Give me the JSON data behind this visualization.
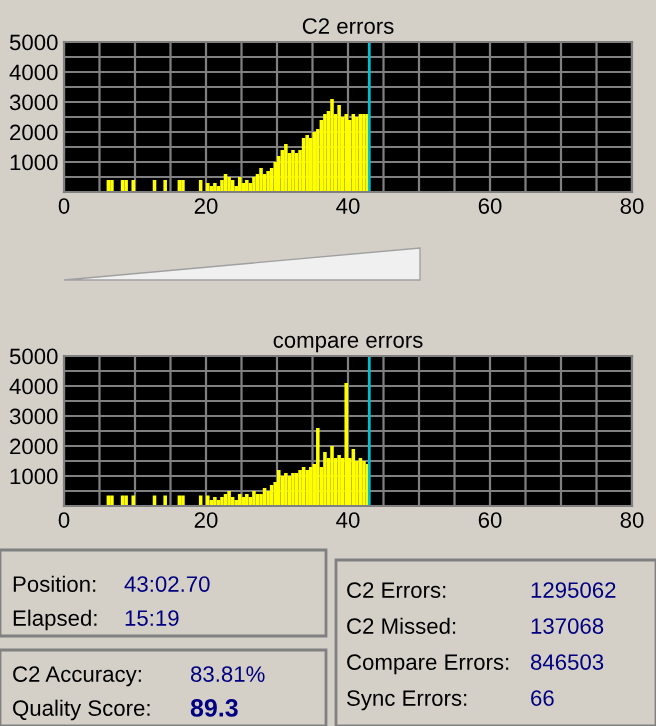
{
  "chart_data": [
    {
      "type": "histogram",
      "title": "C2 errors",
      "bins": [
        5.5,
        6,
        6.5,
        7,
        7.5,
        8,
        8.5,
        9,
        9.5,
        10,
        10.5,
        11,
        11.5,
        12,
        12.5,
        13,
        13.5,
        14,
        14.5,
        15,
        15.5,
        16,
        16.5,
        17,
        17.5,
        18,
        18.5,
        19,
        19.5,
        20,
        20.5,
        21,
        21.5,
        22,
        22.5,
        23,
        23.5,
        24,
        24.5,
        25,
        25.5,
        26,
        26.5,
        27,
        27.5,
        28,
        28.5,
        29,
        29.5,
        30,
        30.5,
        31,
        31.5,
        32,
        32.5,
        33,
        33.5,
        34,
        34.5,
        35,
        35.5,
        36,
        36.5,
        37,
        37.5,
        38,
        38.5,
        39,
        39.5,
        40,
        40.5,
        41,
        41.5,
        42,
        42.5,
        43
      ],
      "values": [
        0,
        400,
        400,
        0,
        0,
        400,
        400,
        0,
        400,
        0,
        0,
        0,
        0,
        0,
        400,
        0,
        0,
        400,
        0,
        0,
        0,
        400,
        400,
        0,
        0,
        0,
        0,
        400,
        0,
        300,
        200,
        300,
        200,
        400,
        600,
        500,
        400,
        200,
        500,
        300,
        400,
        300,
        500,
        600,
        800,
        600,
        700,
        800,
        1000,
        1200,
        1400,
        1600,
        1300,
        1400,
        1300,
        1400,
        1800,
        1900,
        1800,
        2000,
        2100,
        2400,
        2600,
        2700,
        3100,
        2600,
        2900,
        2500,
        2600,
        2400,
        2600,
        2500,
        2600,
        2600,
        2600
      ],
      "color": "#ffff00",
      "xlim": [
        0,
        80
      ],
      "ylim": [
        0,
        5000
      ],
      "xticks": [
        0,
        {
          "value": 5,
          "label": null
        },
        {
          "value": 10,
          "label": null
        },
        {
          "value": 15,
          "label": null
        },
        20,
        {
          "value": 25,
          "label": null
        },
        {
          "value": 30,
          "label": null
        },
        {
          "value": 35,
          "label": null
        },
        40,
        {
          "value": 45,
          "label": null
        },
        {
          "value": 50,
          "label": null
        },
        {
          "value": 55,
          "label": null
        },
        60,
        {
          "value": 65,
          "label": null
        },
        {
          "value": 70,
          "label": null
        },
        {
          "value": 75,
          "label": null
        },
        80
      ],
      "yticks": [
        {
          "value": 500,
          "label": null
        },
        1000,
        {
          "value": 1500,
          "label": null
        },
        2000,
        {
          "value": 2500,
          "label": null
        },
        3000,
        {
          "value": 3500,
          "label": null
        },
        4000,
        {
          "value": 4500,
          "label": null
        },
        5000
      ],
      "grid": true,
      "ref_lines": [
        {
          "axis": "x",
          "value": 43,
          "color": "#00c0d0"
        }
      ]
    },
    {
      "type": "histogram",
      "title": "compare errors",
      "bins": [
        5.5,
        6,
        6.5,
        7,
        7.5,
        8,
        8.5,
        9,
        9.5,
        10,
        10.5,
        11,
        11.5,
        12,
        12.5,
        13,
        13.5,
        14,
        14.5,
        15,
        15.5,
        16,
        16.5,
        17,
        17.5,
        18,
        18.5,
        19,
        19.5,
        20,
        20.5,
        21,
        21.5,
        22,
        22.5,
        23,
        23.5,
        24,
        24.5,
        25,
        25.5,
        26,
        26.5,
        27,
        27.5,
        28,
        28.5,
        29,
        29.5,
        30,
        30.5,
        31,
        31.5,
        32,
        32.5,
        33,
        33.5,
        34,
        34.5,
        35,
        35.5,
        36,
        36.5,
        37,
        37.5,
        38,
        38.5,
        39,
        39.5,
        40,
        40.5,
        41,
        41.5,
        42,
        42.5,
        43
      ],
      "values": [
        0,
        350,
        350,
        0,
        0,
        350,
        350,
        0,
        350,
        0,
        0,
        0,
        0,
        0,
        350,
        0,
        0,
        350,
        0,
        0,
        0,
        350,
        350,
        0,
        0,
        0,
        0,
        350,
        0,
        350,
        200,
        300,
        200,
        300,
        400,
        500,
        300,
        200,
        400,
        300,
        400,
        300,
        500,
        400,
        400,
        600,
        500,
        700,
        800,
        1200,
        1000,
        1100,
        1000,
        1100,
        1100,
        1200,
        1300,
        1200,
        1300,
        1400,
        2600,
        1300,
        1800,
        1600,
        2000,
        1600,
        1700,
        1600,
        4100,
        1600,
        1900,
        1500,
        1600,
        1500,
        1400
      ],
      "color": "#ffff00",
      "xlim": [
        0,
        80
      ],
      "ylim": [
        0,
        5000
      ],
      "xticks": [
        0,
        {
          "value": 5,
          "label": null
        },
        {
          "value": 10,
          "label": null
        },
        {
          "value": 15,
          "label": null
        },
        20,
        {
          "value": 25,
          "label": null
        },
        {
          "value": 30,
          "label": null
        },
        {
          "value": 35,
          "label": null
        },
        40,
        {
          "value": 45,
          "label": null
        },
        {
          "value": 50,
          "label": null
        },
        {
          "value": 55,
          "label": null
        },
        60,
        {
          "value": 65,
          "label": null
        },
        {
          "value": 70,
          "label": null
        },
        {
          "value": 75,
          "label": null
        },
        80
      ],
      "yticks": [
        {
          "value": 500,
          "label": null
        },
        1000,
        {
          "value": 1500,
          "label": null
        },
        2000,
        {
          "value": 2500,
          "label": null
        },
        3000,
        {
          "value": 3500,
          "label": null
        },
        4000,
        {
          "value": 4500,
          "label": null
        },
        5000
      ],
      "grid": true,
      "ref_lines": [
        {
          "axis": "x",
          "value": 43,
          "color": "#00c0d0"
        }
      ]
    },
    {
      "type": "other",
      "annotations": [
        "Position:",
        "43:02.70",
        "Elapsed:",
        "15:19",
        "C2 Accuracy:",
        "83.81%",
        "Quality Score:",
        "89.3",
        "C2 Errors:",
        "1295062",
        "C2 Missed:",
        "137068",
        "Compare Errors:",
        "846503",
        "Sync Errors:",
        "66"
      ]
    }
  ]
}
